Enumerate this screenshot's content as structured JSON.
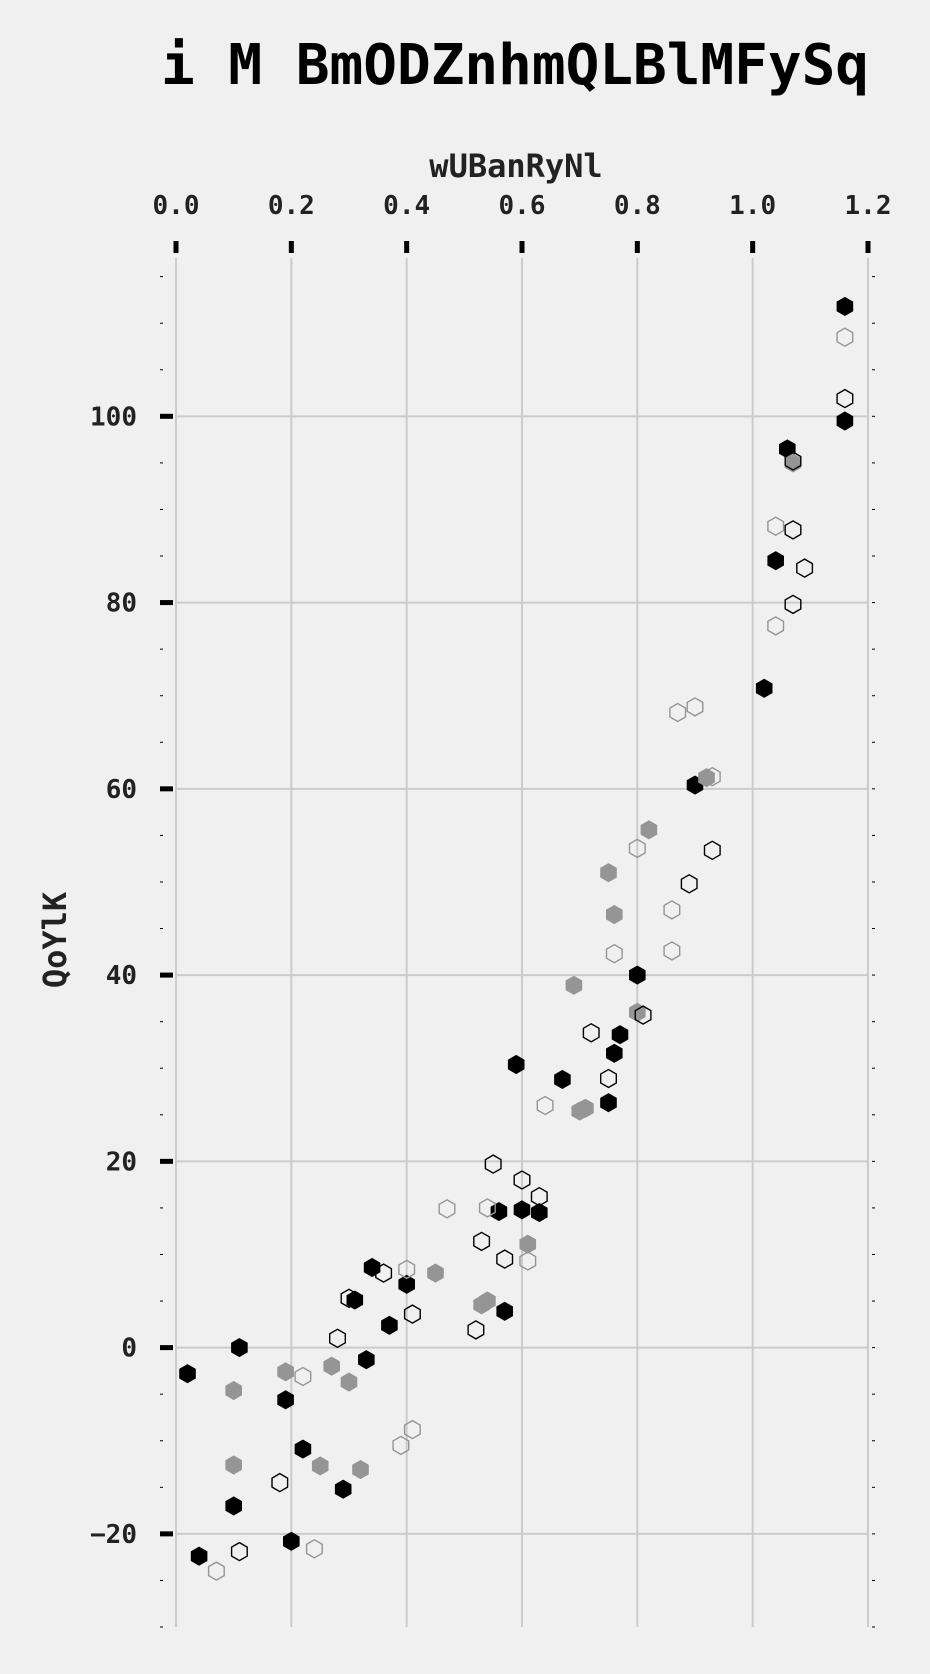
{
  "chart_data": {
    "type": "scatter",
    "title": "i M BmODZnhmQLBlMFySq",
    "xlabel": "wUBanRyNl",
    "ylabel": "QoYlK",
    "xlim": [
      0.0,
      1.2
    ],
    "ylim": [
      -30,
      117
    ],
    "x_ticks": [
      "0.0",
      "0.2",
      "0.4",
      "0.6",
      "0.8",
      "1.0",
      "1.2"
    ],
    "y_ticks": [
      "100",
      "80",
      "60",
      "40",
      "20",
      "0",
      "−20"
    ],
    "x_axis_position": "top",
    "grid": true,
    "marker": "hexagon",
    "series": [
      {
        "style": "filled",
        "color": "#000000",
        "points": [
          [
            1.16,
            111.8
          ],
          [
            1.16,
            99.5
          ],
          [
            1.06,
            96.5
          ],
          [
            1.04,
            84.5
          ],
          [
            1.02,
            70.8
          ],
          [
            0.9,
            60.4
          ],
          [
            0.8,
            40.0
          ],
          [
            0.77,
            33.6
          ],
          [
            0.76,
            31.6
          ],
          [
            0.59,
            30.4
          ],
          [
            0.67,
            28.8
          ],
          [
            0.75,
            26.3
          ],
          [
            0.6,
            14.8
          ],
          [
            0.63,
            14.5
          ],
          [
            0.56,
            14.6
          ],
          [
            0.34,
            8.6
          ],
          [
            0.31,
            5.1
          ],
          [
            0.4,
            6.8
          ],
          [
            0.57,
            3.9
          ],
          [
            0.37,
            2.4
          ],
          [
            0.11,
            0.0
          ],
          [
            0.33,
            -1.3
          ],
          [
            0.02,
            -2.8
          ],
          [
            0.19,
            -5.6
          ],
          [
            0.22,
            -10.9
          ],
          [
            0.29,
            -15.2
          ],
          [
            0.1,
            -17.0
          ],
          [
            0.2,
            -20.8
          ],
          [
            0.04,
            -22.4
          ]
        ]
      },
      {
        "style": "filled",
        "color": "#959595",
        "points": [
          [
            1.07,
            95.0
          ],
          [
            0.92,
            61.2
          ],
          [
            0.82,
            55.6
          ],
          [
            0.75,
            51.0
          ],
          [
            0.76,
            46.5
          ],
          [
            0.69,
            38.9
          ],
          [
            0.8,
            36.0
          ],
          [
            0.71,
            25.7
          ],
          [
            0.7,
            25.4
          ],
          [
            0.61,
            11.1
          ],
          [
            0.45,
            8.0
          ],
          [
            0.54,
            5.0
          ],
          [
            0.53,
            4.6
          ],
          [
            0.19,
            -2.6
          ],
          [
            0.27,
            -2.0
          ],
          [
            0.3,
            -3.7
          ],
          [
            0.1,
            -4.6
          ],
          [
            0.1,
            -12.6
          ],
          [
            0.25,
            -12.7
          ],
          [
            0.32,
            -13.1
          ]
        ]
      },
      {
        "style": "outline",
        "color": "#000000",
        "points": [
          [
            1.16,
            101.9
          ],
          [
            1.07,
            95.2
          ],
          [
            1.07,
            87.8
          ],
          [
            1.09,
            83.7
          ],
          [
            1.07,
            79.8
          ],
          [
            0.93,
            53.4
          ],
          [
            0.89,
            49.8
          ],
          [
            0.81,
            35.7
          ],
          [
            0.72,
            33.8
          ],
          [
            0.75,
            28.9
          ],
          [
            0.55,
            19.7
          ],
          [
            0.6,
            18.0
          ],
          [
            0.63,
            16.2
          ],
          [
            0.53,
            11.4
          ],
          [
            0.57,
            9.5
          ],
          [
            0.36,
            8.0
          ],
          [
            0.3,
            5.3
          ],
          [
            0.41,
            3.6
          ],
          [
            0.52,
            1.9
          ],
          [
            0.28,
            1.0
          ],
          [
            0.18,
            -14.5
          ],
          [
            0.11,
            -21.9
          ]
        ]
      },
      {
        "style": "outline",
        "color": "#959595",
        "points": [
          [
            1.16,
            108.5
          ],
          [
            1.04,
            88.2
          ],
          [
            1.04,
            77.5
          ],
          [
            0.9,
            68.8
          ],
          [
            0.87,
            68.2
          ],
          [
            0.93,
            61.3
          ],
          [
            0.8,
            53.6
          ],
          [
            0.86,
            47.0
          ],
          [
            0.76,
            42.3
          ],
          [
            0.86,
            42.6
          ],
          [
            0.64,
            26.0
          ],
          [
            0.54,
            15.0
          ],
          [
            0.47,
            14.9
          ],
          [
            0.61,
            9.3
          ],
          [
            0.4,
            8.4
          ],
          [
            0.22,
            -3.1
          ],
          [
            0.41,
            -8.8
          ],
          [
            0.39,
            -10.5
          ],
          [
            0.24,
            -21.6
          ],
          [
            0.07,
            -24.0
          ]
        ]
      }
    ]
  }
}
